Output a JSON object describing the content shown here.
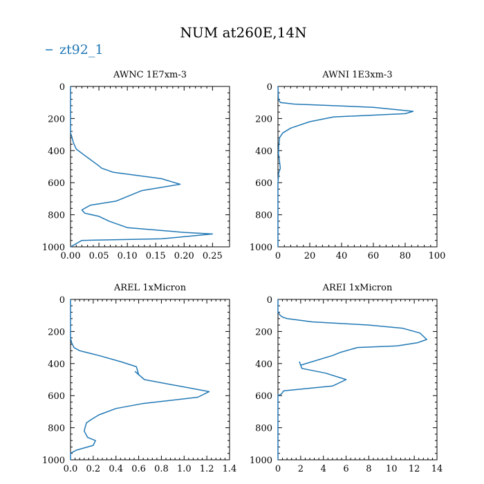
{
  "figure": {
    "title": "NUM at260E,14N",
    "legend": {
      "label": "zt92_1",
      "color": "#1f77b4",
      "placement": "top-left"
    }
  },
  "chart_data": [
    {
      "type": "line",
      "title": "AWNC  1E7xm-3",
      "xlabel": "",
      "ylabel": "",
      "xlim": [
        0,
        0.28
      ],
      "ylim": [
        1000,
        0
      ],
      "y_inverted": true,
      "xticks": [
        0,
        0.05,
        0.1,
        0.15,
        0.2,
        0.25
      ],
      "xtick_labels": [
        "0.00",
        "0.05",
        "0.10",
        "0.15",
        "0.20",
        "0.25"
      ],
      "yticks": [
        0,
        200,
        400,
        600,
        800,
        1000
      ],
      "ytick_labels": [
        "0",
        "200",
        "400",
        "600",
        "800",
        "1000"
      ],
      "series": [
        {
          "name": "zt92_1",
          "color": "#1f77b4",
          "x": [
            0,
            0,
            0.002,
            0.005,
            0.01,
            0.025,
            0.048,
            0.055,
            0.075,
            0.16,
            0.193,
            0.125,
            0.08,
            0.035,
            0.02,
            0.025,
            0.05,
            0.068,
            0.1,
            0.2,
            0.25,
            0.16,
            0.02,
            0
          ],
          "y": [
            0,
            290,
            310,
            350,
            390,
            430,
            490,
            510,
            535,
            575,
            610,
            650,
            715,
            740,
            770,
            790,
            810,
            840,
            880,
            910,
            920,
            950,
            960,
            1000
          ]
        }
      ]
    },
    {
      "type": "line",
      "title": "AWNI  1E3xm-3",
      "xlabel": "",
      "ylabel": "",
      "xlim": [
        0,
        100
      ],
      "ylim": [
        1000,
        0
      ],
      "y_inverted": true,
      "xticks": [
        0,
        20,
        40,
        60,
        80,
        100
      ],
      "xtick_labels": [
        "0",
        "20",
        "40",
        "60",
        "80",
        "100"
      ],
      "yticks": [
        0,
        200,
        400,
        600,
        800,
        1000
      ],
      "ytick_labels": [
        "0",
        "200",
        "400",
        "600",
        "800",
        "1000"
      ],
      "series": [
        {
          "name": "zt92_1",
          "color": "#1f77b4",
          "x": [
            0,
            0.3,
            1.5,
            10,
            60,
            85,
            80,
            35,
            20,
            8,
            3,
            1,
            0.5,
            0.3,
            1,
            1.5,
            0.5,
            0,
            0
          ],
          "y": [
            0,
            80,
            100,
            110,
            130,
            155,
            170,
            190,
            220,
            260,
            290,
            320,
            370,
            420,
            470,
            510,
            540,
            600,
            1000
          ]
        }
      ]
    },
    {
      "type": "line",
      "title": "AREL  1xMicron",
      "xlabel": "",
      "ylabel": "",
      "xlim": [
        0,
        1.4
      ],
      "ylim": [
        1000,
        0
      ],
      "y_inverted": true,
      "xticks": [
        0,
        0.2,
        0.4,
        0.6,
        0.8,
        1.0,
        1.2,
        1.4
      ],
      "xtick_labels": [
        "0.0",
        "0.2",
        "0.4",
        "0.6",
        "0.8",
        "1.0",
        "1.2",
        "1.4"
      ],
      "yticks": [
        0,
        200,
        400,
        600,
        800,
        1000
      ],
      "ytick_labels": [
        "0",
        "200",
        "400",
        "600",
        "800",
        "1000"
      ],
      "series": [
        {
          "name": "zt92_1",
          "color": "#1f77b4",
          "x": [
            0,
            0,
            0.01,
            0.03,
            0.08,
            0.25,
            0.45,
            0.58,
            0.6,
            0.57,
            0.65,
            1.22,
            1.12,
            0.63,
            0.4,
            0.25,
            0.18,
            0.14,
            0.12,
            0.15,
            0.22,
            0.2,
            0.05,
            0,
            0
          ],
          "y": [
            0,
            240,
            270,
            300,
            320,
            350,
            390,
            420,
            470,
            450,
            500,
            575,
            610,
            650,
            680,
            720,
            750,
            770,
            820,
            860,
            880,
            910,
            940,
            960,
            1000
          ]
        }
      ]
    },
    {
      "type": "line",
      "title": "AREI  1xMicron",
      "xlabel": "",
      "ylabel": "",
      "xlim": [
        0,
        14
      ],
      "ylim": [
        1000,
        0
      ],
      "y_inverted": true,
      "xticks": [
        0,
        2,
        4,
        6,
        8,
        10,
        12,
        14
      ],
      "xtick_labels": [
        "0",
        "2",
        "4",
        "6",
        "8",
        "10",
        "12",
        "14"
      ],
      "yticks": [
        0,
        200,
        400,
        600,
        800,
        1000
      ],
      "ytick_labels": [
        "0",
        "200",
        "400",
        "600",
        "800",
        "1000"
      ],
      "series": [
        {
          "name": "zt92_1",
          "color": "#1f77b4",
          "x": [
            0,
            0,
            0.2,
            0.4,
            0.8,
            3,
            8,
            11,
            12.5,
            13.1,
            12.3,
            10.5,
            7,
            5.5,
            4.8,
            2,
            1.9,
            2.1,
            4.2,
            6,
            4.8,
            0.5,
            0.3,
            0,
            0
          ],
          "y": [
            0,
            80,
            100,
            110,
            120,
            140,
            160,
            180,
            210,
            250,
            270,
            290,
            300,
            330,
            350,
            410,
            390,
            430,
            460,
            500,
            540,
            570,
            590,
            600,
            1000
          ]
        }
      ]
    }
  ]
}
